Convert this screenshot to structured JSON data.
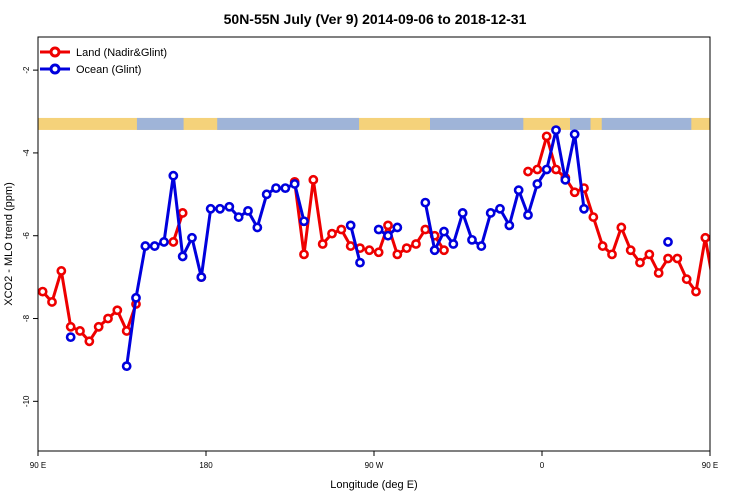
{
  "chart_data": {
    "type": "line",
    "title": "50N-55N July (Ver 9)   2014-09-06 to 2018-12-31",
    "xlabel": "Longitude (deg E)",
    "ylabel": "XCO2 - MLO trend (ppm)",
    "xlim": [
      90,
      450
    ],
    "ylim": [
      -11.2,
      -1.2
    ],
    "xticks": [
      {
        "value": 90,
        "label": "90 E"
      },
      {
        "value": 180,
        "label": "180"
      },
      {
        "value": 270,
        "label": "90 W"
      },
      {
        "value": 360,
        "label": "0"
      },
      {
        "value": 450,
        "label": "90 E"
      },
      {
        "value": 540,
        "label": "180"
      }
    ],
    "yticks": [
      {
        "value": -2,
        "label": "-2"
      },
      {
        "value": -4,
        "label": "-4"
      },
      {
        "value": -6,
        "label": "-6"
      },
      {
        "value": -8,
        "label": "-8"
      },
      {
        "value": -10,
        "label": "-10"
      }
    ],
    "legend": {
      "placement": "top-left"
    },
    "land_ocean_band": {
      "y_center": -3.3,
      "land_color": "#f5d27a",
      "ocean_color": "#9fb4d8"
    },
    "series": [
      {
        "name": "Land (Nadir&Glint)",
        "color": "#ee0000",
        "points": [
          [
            92.5,
            -7.35
          ],
          [
            97.5,
            -7.6
          ],
          [
            102.5,
            -6.85
          ],
          [
            107.5,
            -8.2
          ],
          [
            112.5,
            -8.3
          ],
          [
            117.5,
            -8.55
          ],
          [
            122.5,
            -8.2
          ],
          [
            127.5,
            -8.0
          ],
          [
            132.5,
            -7.8
          ],
          [
            137.5,
            -8.3
          ],
          [
            142.5,
            -7.65
          ],
          null,
          [
            162.5,
            -6.15
          ],
          [
            167.5,
            -5.45
          ],
          null,
          [
            177.5,
            -7.0
          ],
          null,
          [
            227.5,
            -4.7
          ],
          [
            232.5,
            -6.45
          ],
          [
            237.5,
            -4.65
          ],
          [
            242.5,
            -6.2
          ],
          [
            247.5,
            -5.95
          ],
          [
            252.5,
            -5.85
          ],
          [
            257.5,
            -6.25
          ],
          [
            262.5,
            -6.3
          ],
          [
            267.5,
            -6.35
          ],
          [
            272.5,
            -6.4
          ],
          [
            277.5,
            -5.75
          ],
          [
            282.5,
            -6.45
          ],
          [
            287.5,
            -6.3
          ],
          [
            292.5,
            -6.2
          ],
          [
            297.5,
            -5.85
          ],
          [
            302.5,
            -6.0
          ],
          [
            307.5,
            -6.35
          ],
          null,
          [
            352.5,
            -4.45
          ],
          [
            357.5,
            -4.4
          ],
          [
            362.5,
            -3.6
          ],
          [
            367.5,
            -4.4
          ],
          [
            372.5,
            -4.6
          ],
          [
            377.5,
            -4.95
          ],
          [
            382.5,
            -4.85
          ],
          [
            387.5,
            -5.55
          ],
          [
            392.5,
            -6.25
          ],
          [
            397.5,
            -6.45
          ],
          [
            402.5,
            -5.8
          ],
          [
            407.5,
            -6.35
          ],
          [
            412.5,
            -6.65
          ],
          [
            417.5,
            -6.45
          ],
          [
            422.5,
            -6.9
          ],
          [
            427.5,
            -6.55
          ],
          [
            432.5,
            -6.55
          ],
          [
            437.5,
            -7.05
          ],
          [
            442.5,
            -7.35
          ],
          [
            447.5,
            -6.05
          ],
          [
            452.5,
            -7.35
          ],
          [
            457.5,
            -7.6
          ],
          [
            462.5,
            -6.85
          ],
          [
            467.5,
            -8.2
          ],
          [
            472.5,
            -8.3
          ],
          [
            477.5,
            -8.55
          ],
          [
            482.5,
            -8.2
          ],
          [
            487.5,
            -8.0
          ],
          [
            492.5,
            -7.8
          ],
          [
            497.5,
            -8.3
          ],
          [
            502.5,
            -7.65
          ],
          null,
          [
            522.5,
            -6.15
          ],
          [
            527.5,
            -5.45
          ]
        ]
      },
      {
        "name": "Ocean (Glint)",
        "color": "#0000dd",
        "points": [
          [
            107.5,
            -8.45
          ],
          null,
          [
            137.5,
            -9.15
          ],
          [
            142.5,
            -7.5
          ],
          [
            147.5,
            -6.25
          ],
          [
            152.5,
            -6.25
          ],
          [
            157.5,
            -6.15
          ],
          [
            162.5,
            -4.55
          ],
          [
            167.5,
            -6.5
          ],
          [
            172.5,
            -6.05
          ],
          [
            177.5,
            -7.0
          ],
          [
            182.5,
            -5.35
          ],
          [
            187.5,
            -5.35
          ],
          [
            192.5,
            -5.3
          ],
          [
            197.5,
            -5.55
          ],
          [
            202.5,
            -5.4
          ],
          [
            207.5,
            -5.8
          ],
          [
            212.5,
            -5.0
          ],
          [
            217.5,
            -4.85
          ],
          [
            222.5,
            -4.85
          ],
          [
            227.5,
            -4.75
          ],
          [
            232.5,
            -5.65
          ],
          null,
          [
            257.5,
            -5.75
          ],
          [
            262.5,
            -6.65
          ],
          null,
          [
            272.5,
            -5.85
          ],
          [
            277.5,
            -6.0
          ],
          [
            282.5,
            -5.8
          ],
          null,
          [
            297.5,
            -5.2
          ],
          [
            302.5,
            -6.35
          ],
          [
            307.5,
            -5.9
          ],
          [
            312.5,
            -6.2
          ],
          [
            317.5,
            -5.45
          ],
          [
            322.5,
            -6.1
          ],
          [
            327.5,
            -6.25
          ],
          [
            332.5,
            -5.45
          ],
          [
            337.5,
            -5.35
          ],
          [
            342.5,
            -5.75
          ],
          [
            347.5,
            -4.9
          ],
          [
            352.5,
            -5.5
          ],
          [
            357.5,
            -4.75
          ],
          [
            362.5,
            -4.4
          ],
          [
            367.5,
            -3.45
          ],
          [
            372.5,
            -4.65
          ],
          [
            377.5,
            -3.55
          ],
          [
            382.5,
            -5.35
          ],
          null,
          [
            427.5,
            -6.15
          ],
          null,
          [
            467.5,
            -8.45
          ],
          null,
          [
            497.5,
            -9.15
          ],
          [
            502.5,
            -7.5
          ],
          [
            507.5,
            -6.25
          ],
          [
            512.5,
            -6.25
          ],
          [
            517.5,
            -6.15
          ],
          [
            522.5,
            -4.55
          ],
          [
            527.5,
            -6.5
          ],
          [
            532.5,
            -6.05
          ],
          [
            537.5,
            -7.0
          ]
        ]
      }
    ]
  }
}
